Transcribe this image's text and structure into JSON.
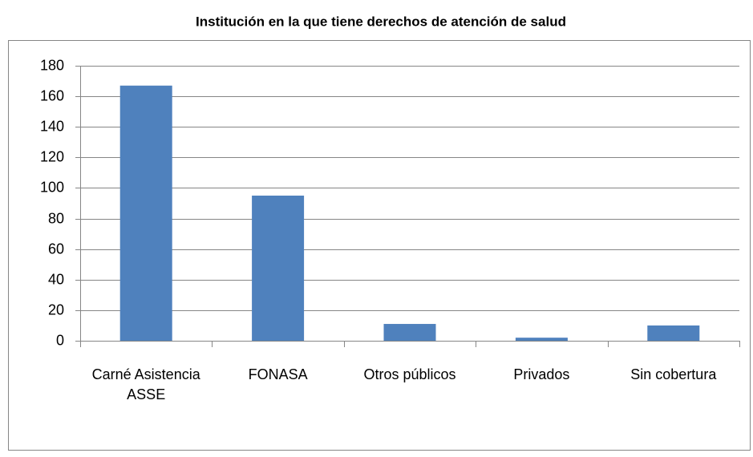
{
  "chart_data": {
    "type": "bar",
    "title": "Institución en la que tiene derechos de atención de salud",
    "categories": [
      "Carné Asistencia ASSE",
      "FONASA",
      "Otros públicos",
      "Privados",
      "Sin cobertura"
    ],
    "values": [
      167,
      95,
      11,
      2,
      10
    ],
    "color": "#4f81bd",
    "ylim": [
      0,
      180
    ],
    "yticks": [
      0,
      20,
      40,
      60,
      80,
      100,
      120,
      140,
      160,
      180
    ],
    "grid": true
  }
}
